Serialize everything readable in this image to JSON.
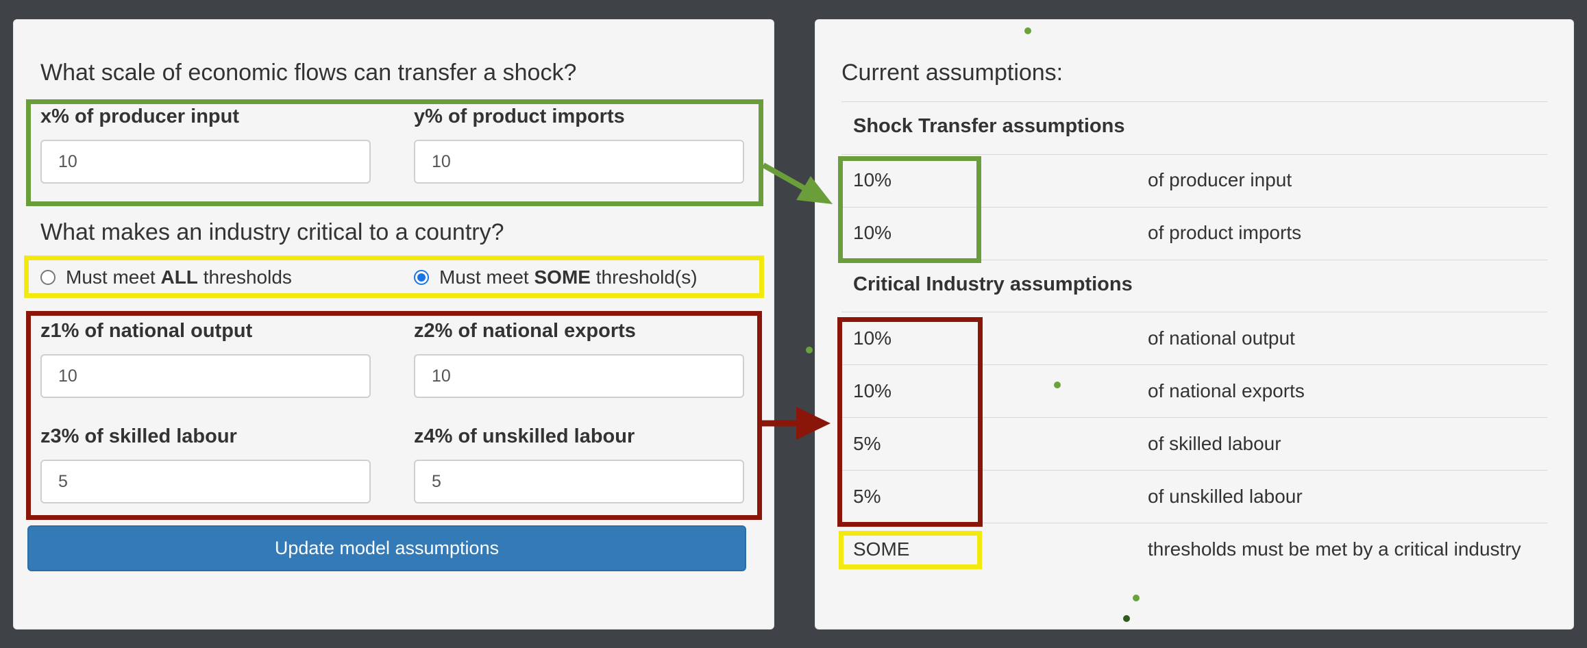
{
  "form": {
    "shock_heading": "What scale of economic flows can transfer a shock?",
    "x_label": "x% of producer input",
    "x_value": "10",
    "y_label": "y% of product imports",
    "y_value": "10",
    "critical_heading": "What makes an industry critical to a country?",
    "radio_all": {
      "prefix": "Must meet ",
      "bold": "ALL",
      "suffix": " thresholds",
      "checked": false
    },
    "radio_some": {
      "prefix": "Must meet ",
      "bold": "SOME",
      "suffix": " threshold(s)",
      "checked": true
    },
    "z1_label": "z1% of national output",
    "z1_value": "10",
    "z2_label": "z2% of national exports",
    "z2_value": "10",
    "z3_label": "z3% of skilled labour",
    "z3_value": "5",
    "z4_label": "z4% of unskilled labour",
    "z4_value": "5",
    "update_button": "Update model assumptions"
  },
  "summary": {
    "heading": "Current assumptions:",
    "shock_title": "Shock Transfer assumptions",
    "shock_rows": [
      {
        "value": "10%",
        "desc": "of producer input"
      },
      {
        "value": "10%",
        "desc": "of product imports"
      }
    ],
    "critical_title": "Critical Industry assumptions",
    "critical_rows": [
      {
        "value": "10%",
        "desc": "of national output"
      },
      {
        "value": "10%",
        "desc": "of national exports"
      },
      {
        "value": "5%",
        "desc": "of skilled labour"
      },
      {
        "value": "5%",
        "desc": "of unskilled labour"
      }
    ],
    "mode_row": {
      "value": "SOME",
      "desc": "thresholds must be met by a critical industry"
    }
  },
  "colors": {
    "green": "#6a9e3a",
    "yellow": "#f2ea0e",
    "red": "#8a1609",
    "button": "#337ab7"
  }
}
